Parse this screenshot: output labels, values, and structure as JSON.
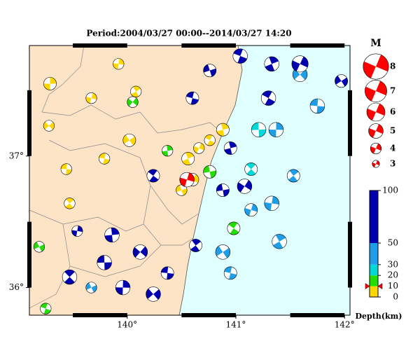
{
  "chart_data": {
    "type": "focal-map",
    "title": "Period:2004/03/27 00:00--2014/03/27 14:20",
    "xlim": [
      139.1,
      142.05
    ],
    "ylim": [
      35.79,
      37.84
    ],
    "xticks": [
      {
        "value": 140,
        "label": "140°"
      },
      {
        "value": 141,
        "label": "141°"
      },
      {
        "value": 142,
        "label": "142°"
      }
    ],
    "yticks": [
      {
        "value": 37,
        "label": "37°"
      },
      {
        "value": 36,
        "label": "36°"
      }
    ],
    "magnitude_title": "M",
    "magnitudes": [
      8,
      7,
      6,
      5,
      4,
      3
    ],
    "legend_color": "#ff0000",
    "depth_title": "Depth(km)",
    "depth_ticks": [
      0,
      10,
      20,
      30,
      50,
      100
    ],
    "depth_colors": [
      "#ffd700",
      "#22dd00",
      "#00d8d8",
      "#1e9ee8",
      "#0000b0"
    ],
    "main_event": {
      "lon": 140.55,
      "lat": 36.82,
      "mag": 5,
      "depth": 10,
      "color": "#ff0000"
    },
    "events": [
      {
        "lon": 139.29,
        "lat": 37.55,
        "depth": 5,
        "mag": 4.5
      },
      {
        "lon": 139.28,
        "lat": 37.23,
        "depth": 5,
        "mag": 4
      },
      {
        "lon": 139.44,
        "lat": 36.9,
        "depth": 5,
        "mag": 4
      },
      {
        "lon": 139.47,
        "lat": 36.64,
        "depth": 8,
        "mag": 4
      },
      {
        "lon": 139.92,
        "lat": 37.7,
        "depth": 5,
        "mag": 4
      },
      {
        "lon": 140.02,
        "lat": 37.12,
        "depth": 8,
        "mag": 4.5
      },
      {
        "lon": 139.79,
        "lat": 36.98,
        "depth": 5,
        "mag": 4
      },
      {
        "lon": 140.08,
        "lat": 37.49,
        "depth": 5,
        "mag": 4
      },
      {
        "lon": 139.67,
        "lat": 37.44,
        "depth": 5,
        "mag": 4
      },
      {
        "lon": 139.19,
        "lat": 36.31,
        "depth": 15,
        "mag": 4
      },
      {
        "lon": 139.25,
        "lat": 35.84,
        "depth": 15,
        "mag": 4
      },
      {
        "lon": 140.56,
        "lat": 36.98,
        "depth": 6,
        "mag": 4.5
      },
      {
        "lon": 140.66,
        "lat": 37.06,
        "depth": 6,
        "mag": 4
      },
      {
        "lon": 140.5,
        "lat": 36.74,
        "depth": 8,
        "mag": 4
      },
      {
        "lon": 140.76,
        "lat": 37.12,
        "depth": 8,
        "mag": 4
      },
      {
        "lon": 140.88,
        "lat": 37.2,
        "depth": 5,
        "mag": 4.5
      },
      {
        "lon": 140.6,
        "lat": 36.82,
        "depth": 7,
        "mag": 4.5
      },
      {
        "lon": 140.76,
        "lat": 36.88,
        "depth": 15,
        "mag": 4.5
      },
      {
        "lon": 140.98,
        "lat": 36.45,
        "depth": 15,
        "mag": 4.5
      },
      {
        "lon": 140.37,
        "lat": 37.04,
        "depth": 15,
        "mag": 4
      },
      {
        "lon": 140.05,
        "lat": 37.41,
        "depth": 15,
        "mag": 4
      },
      {
        "lon": 141.21,
        "lat": 37.2,
        "depth": 25,
        "mag": 5
      },
      {
        "lon": 141.14,
        "lat": 36.9,
        "depth": 25,
        "mag": 4.5
      },
      {
        "lon": 141.37,
        "lat": 37.2,
        "depth": 40,
        "mag": 5
      },
      {
        "lon": 141.59,
        "lat": 37.62,
        "depth": 40,
        "mag": 5
      },
      {
        "lon": 141.75,
        "lat": 37.38,
        "depth": 40,
        "mag": 5
      },
      {
        "lon": 141.53,
        "lat": 36.85,
        "depth": 40,
        "mag": 4.5
      },
      {
        "lon": 141.33,
        "lat": 36.64,
        "depth": 40,
        "mag": 5
      },
      {
        "lon": 140.88,
        "lat": 36.27,
        "depth": 40,
        "mag": 5
      },
      {
        "lon": 140.95,
        "lat": 36.11,
        "depth": 45,
        "mag": 4.5
      },
      {
        "lon": 141.4,
        "lat": 36.35,
        "depth": 40,
        "mag": 5
      },
      {
        "lon": 141.14,
        "lat": 36.59,
        "depth": 40,
        "mag": 4.5
      },
      {
        "lon": 139.67,
        "lat": 36.0,
        "depth": 40,
        "mag": 4
      },
      {
        "lon": 141.04,
        "lat": 37.76,
        "depth": 60,
        "mag": 5
      },
      {
        "lon": 141.33,
        "lat": 37.7,
        "depth": 60,
        "mag": 5
      },
      {
        "lon": 141.59,
        "lat": 37.7,
        "depth": 70,
        "mag": 5.5
      },
      {
        "lon": 140.76,
        "lat": 37.65,
        "depth": 60,
        "mag": 4.5
      },
      {
        "lon": 141.3,
        "lat": 37.44,
        "depth": 60,
        "mag": 5
      },
      {
        "lon": 140.95,
        "lat": 37.06,
        "depth": 60,
        "mag": 4.5
      },
      {
        "lon": 141.08,
        "lat": 36.77,
        "depth": 60,
        "mag": 5
      },
      {
        "lon": 140.88,
        "lat": 36.74,
        "depth": 60,
        "mag": 4.5
      },
      {
        "lon": 140.24,
        "lat": 36.85,
        "depth": 60,
        "mag": 4.5
      },
      {
        "lon": 139.86,
        "lat": 36.4,
        "depth": 70,
        "mag": 5
      },
      {
        "lon": 140.12,
        "lat": 36.27,
        "depth": 70,
        "mag": 5
      },
      {
        "lon": 139.79,
        "lat": 36.19,
        "depth": 70,
        "mag": 5
      },
      {
        "lon": 139.47,
        "lat": 36.08,
        "depth": 70,
        "mag": 5
      },
      {
        "lon": 139.96,
        "lat": 36.0,
        "depth": 70,
        "mag": 5
      },
      {
        "lon": 140.24,
        "lat": 35.95,
        "depth": 70,
        "mag": 5
      },
      {
        "lon": 140.37,
        "lat": 36.11,
        "depth": 70,
        "mag": 4.5
      },
      {
        "lon": 140.63,
        "lat": 36.32,
        "depth": 60,
        "mag": 4.5
      },
      {
        "lon": 139.54,
        "lat": 36.43,
        "depth": 70,
        "mag": 4
      },
      {
        "lon": 141.97,
        "lat": 37.57,
        "depth": 80,
        "mag": 4.5
      },
      {
        "lon": 140.6,
        "lat": 37.44,
        "depth": 60,
        "mag": 4.5
      }
    ]
  }
}
